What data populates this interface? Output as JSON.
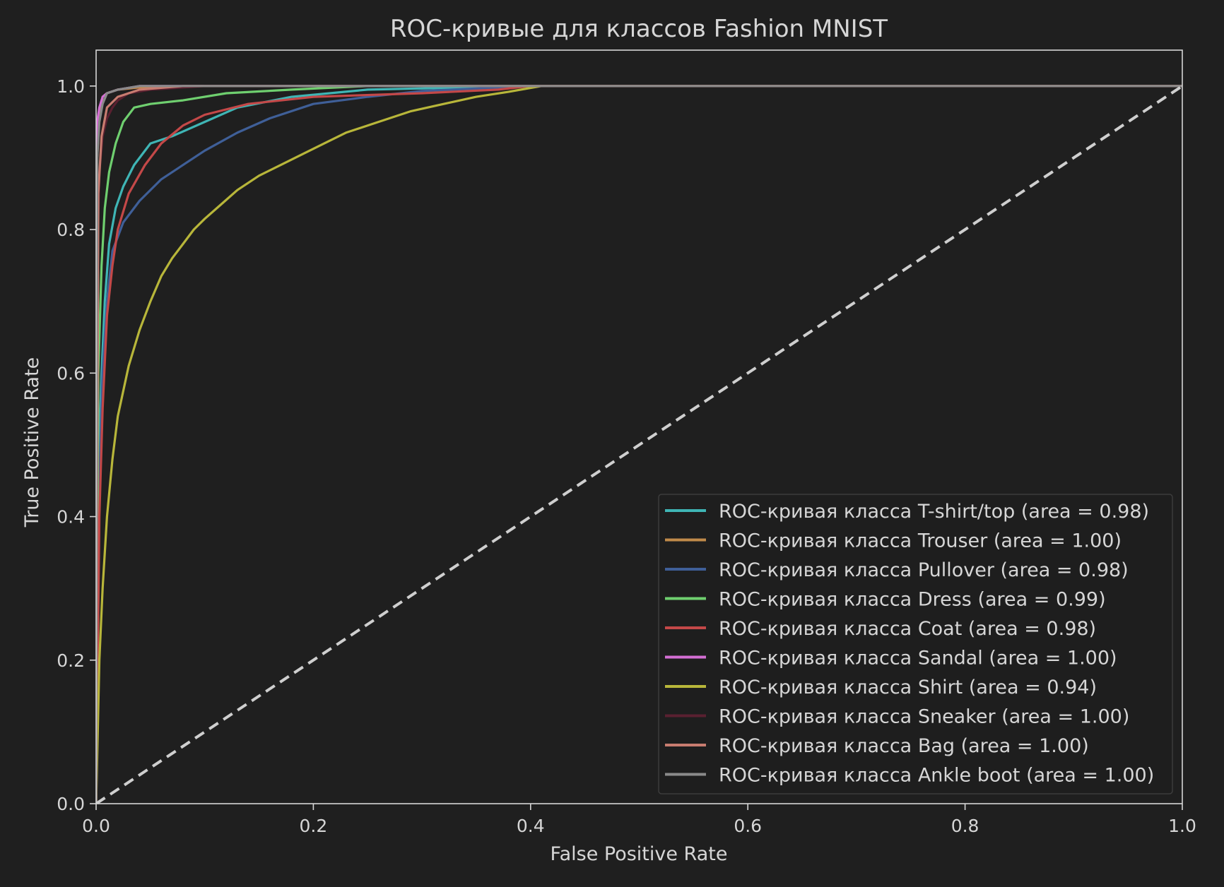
{
  "chart_data": {
    "type": "line",
    "title": "ROC-кривые для классов Fashion MNIST",
    "xlabel": "False Positive Rate",
    "ylabel": "True Positive Rate",
    "xlim": [
      0.0,
      1.0
    ],
    "ylim": [
      0.0,
      1.05
    ],
    "xticks": [
      "0.0",
      "0.2",
      "0.4",
      "0.6",
      "0.8",
      "1.0"
    ],
    "yticks": [
      "0.0",
      "0.2",
      "0.4",
      "0.6",
      "0.8",
      "1.0"
    ],
    "grid": false,
    "legend_position": "lower-right",
    "background": "#1f1f1f",
    "axis_color": "#d6d6d6",
    "diagonal": {
      "x": [
        0,
        1
      ],
      "y": [
        0,
        1
      ],
      "color": "#cfcfcf",
      "style": "dashed"
    },
    "series": [
      {
        "name": "ROC-кривая класса T-shirt/top (area = 0.98)",
        "color": "#3fb5b5",
        "x": [
          0,
          0.002,
          0.005,
          0.008,
          0.012,
          0.018,
          0.025,
          0.035,
          0.05,
          0.07,
          0.1,
          0.13,
          0.18,
          0.25,
          0.4,
          1.0
        ],
        "y": [
          0,
          0.45,
          0.6,
          0.7,
          0.78,
          0.83,
          0.86,
          0.89,
          0.92,
          0.93,
          0.95,
          0.97,
          0.985,
          0.995,
          1.0,
          1.0
        ]
      },
      {
        "name": "ROC-кривая класса Trouser (area = 1.00)",
        "color": "#c08a4a",
        "x": [
          0,
          0.001,
          0.003,
          0.006,
          0.01,
          0.02,
          0.04,
          0.1,
          1.0
        ],
        "y": [
          0,
          0.9,
          0.96,
          0.985,
          0.99,
          0.995,
          0.998,
          1.0,
          1.0
        ]
      },
      {
        "name": "ROC-кривая класса Pullover (area = 0.98)",
        "color": "#3f5f98",
        "x": [
          0,
          0.003,
          0.006,
          0.01,
          0.015,
          0.025,
          0.04,
          0.06,
          0.08,
          0.1,
          0.13,
          0.16,
          0.2,
          0.25,
          0.3,
          0.4,
          1.0
        ],
        "y": [
          0,
          0.45,
          0.6,
          0.7,
          0.77,
          0.81,
          0.84,
          0.87,
          0.89,
          0.91,
          0.935,
          0.955,
          0.975,
          0.985,
          0.993,
          1.0,
          1.0
        ]
      },
      {
        "name": "ROC-кривая класса Dress (area = 0.99)",
        "color": "#6fcf6f",
        "x": [
          0,
          0.002,
          0.005,
          0.008,
          0.012,
          0.018,
          0.025,
          0.035,
          0.05,
          0.08,
          0.12,
          0.18,
          0.25,
          1.0
        ],
        "y": [
          0,
          0.6,
          0.75,
          0.83,
          0.88,
          0.92,
          0.95,
          0.97,
          0.975,
          0.98,
          0.99,
          0.995,
          1.0,
          1.0
        ]
      },
      {
        "name": "ROC-кривая класса Coat (area = 0.98)",
        "color": "#c44848",
        "x": [
          0,
          0.003,
          0.006,
          0.01,
          0.015,
          0.02,
          0.03,
          0.045,
          0.06,
          0.08,
          0.1,
          0.14,
          0.2,
          0.3,
          0.37,
          0.4,
          1.0
        ],
        "y": [
          0,
          0.4,
          0.55,
          0.68,
          0.75,
          0.8,
          0.85,
          0.89,
          0.92,
          0.945,
          0.96,
          0.975,
          0.985,
          0.99,
          0.995,
          1.0,
          1.0
        ]
      },
      {
        "name": "ROC-кривая класса Sandal (area = 1.00)",
        "color": "#d46fd4",
        "x": [
          0,
          0.001,
          0.003,
          0.006,
          0.01,
          0.02,
          0.04,
          0.07,
          1.0
        ],
        "y": [
          0,
          0.95,
          0.97,
          0.985,
          0.99,
          0.995,
          1.0,
          1.0,
          1.0
        ]
      },
      {
        "name": "ROC-кривая класса Shirt (area = 0.94)",
        "color": "#b8b63a",
        "x": [
          0,
          0.003,
          0.006,
          0.01,
          0.015,
          0.02,
          0.03,
          0.04,
          0.05,
          0.06,
          0.07,
          0.08,
          0.09,
          0.1,
          0.115,
          0.13,
          0.15,
          0.17,
          0.19,
          0.21,
          0.23,
          0.26,
          0.29,
          0.32,
          0.35,
          0.38,
          0.41,
          1.0
        ],
        "y": [
          0,
          0.2,
          0.3,
          0.4,
          0.48,
          0.54,
          0.61,
          0.66,
          0.7,
          0.735,
          0.76,
          0.78,
          0.8,
          0.815,
          0.835,
          0.855,
          0.875,
          0.89,
          0.905,
          0.92,
          0.935,
          0.95,
          0.965,
          0.975,
          0.985,
          0.992,
          1.0,
          1.0
        ]
      },
      {
        "name": "ROC-кривая класса Sneaker (area = 1.00)",
        "color": "#5a2030",
        "x": [
          0,
          0.001,
          0.003,
          0.006,
          0.01,
          0.015,
          0.02,
          0.03,
          0.05,
          0.1,
          1.0
        ],
        "y": [
          0,
          0.75,
          0.88,
          0.93,
          0.955,
          0.97,
          0.98,
          0.99,
          0.995,
          1.0,
          1.0
        ]
      },
      {
        "name": "ROC-кривая класса Bag (area = 1.00)",
        "color": "#c87c70",
        "x": [
          0,
          0.002,
          0.005,
          0.01,
          0.02,
          0.04,
          0.08,
          1.0
        ],
        "y": [
          0,
          0.85,
          0.93,
          0.97,
          0.985,
          0.995,
          1.0,
          1.0
        ]
      },
      {
        "name": "ROC-кривая класса Ankle boot (area = 1.00)",
        "color": "#8a8a8a",
        "x": [
          0,
          0.001,
          0.003,
          0.006,
          0.01,
          0.02,
          0.04,
          1.0
        ],
        "y": [
          0,
          0.9,
          0.95,
          0.975,
          0.99,
          0.995,
          1.0,
          1.0
        ]
      }
    ]
  }
}
